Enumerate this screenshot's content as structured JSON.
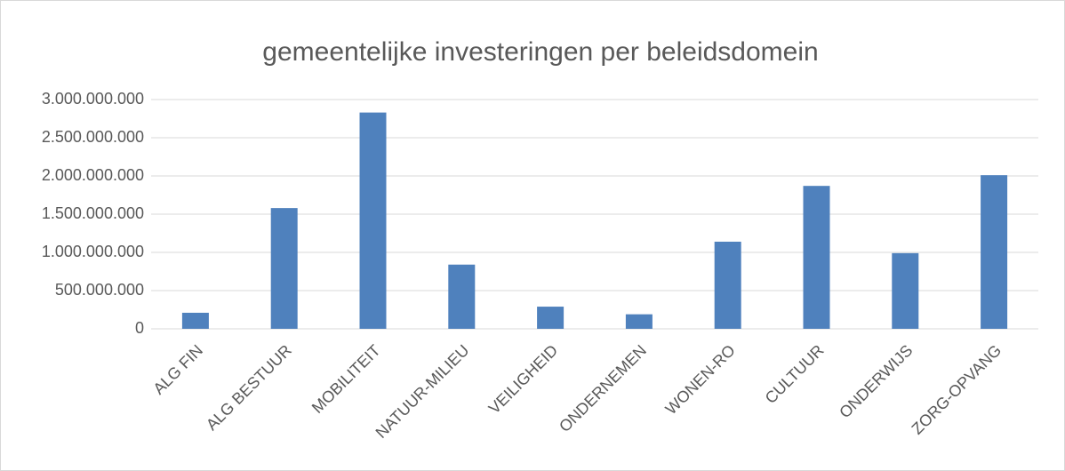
{
  "chart_data": {
    "type": "bar",
    "title": "gemeentelijke investeringen per beleidsdomein",
    "categories": [
      "ALG FIN",
      "ALG BESTUUR",
      "MOBILITEIT",
      "NATUUR-MILIEU",
      "VEILIGHEID",
      "ONDERNEMEN",
      "WONEN-RO",
      "CULTUUR",
      "ONDERWIJS",
      "ZORG-OPVANG"
    ],
    "values": [
      210000000,
      1580000000,
      2830000000,
      840000000,
      290000000,
      190000000,
      1140000000,
      1870000000,
      990000000,
      2010000000
    ],
    "color": "#4f81bd",
    "ylim": [
      0,
      3000000000
    ],
    "yticks": [
      0,
      {
        "value": 500000000,
        "label": "500.000.000"
      },
      {
        "value": 1000000000,
        "label": "1.000.000.000"
      },
      {
        "value": 1500000000,
        "label": "1.500.000.000"
      },
      {
        "value": 2000000000,
        "label": "2.000.000.000"
      },
      {
        "value": 2500000000,
        "label": "2.500.000.000"
      },
      {
        "value": 3000000000,
        "label": "3.000.000.000"
      }
    ],
    "grid": true
  }
}
